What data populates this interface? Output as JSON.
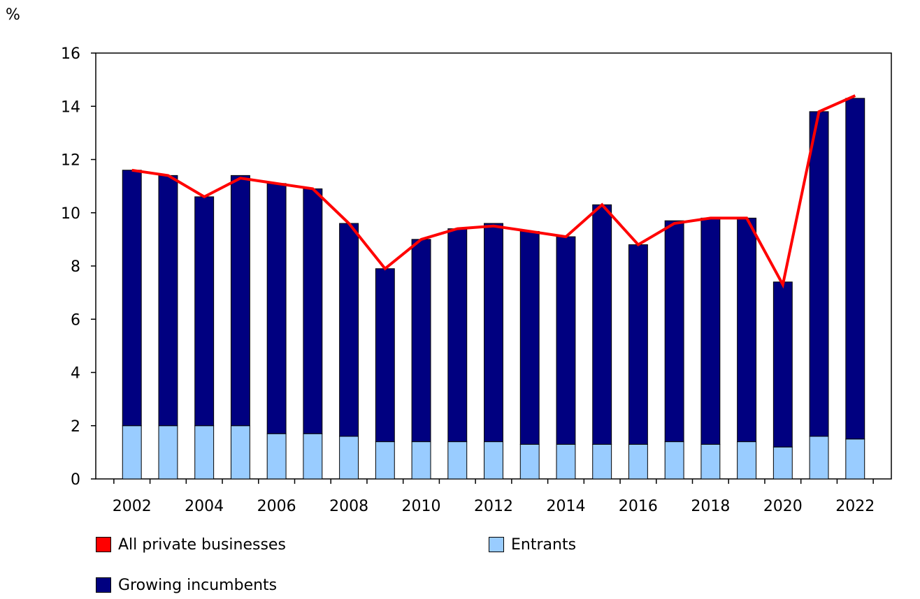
{
  "chart_data": {
    "type": "bar",
    "stacked": true,
    "unit_label": "%",
    "title": "",
    "xlabel": "",
    "ylabel": "%",
    "ylim": [
      0,
      16
    ],
    "y_ticks": [
      "0",
      "2",
      "4",
      "6",
      "8",
      "10",
      "12",
      "14",
      "16"
    ],
    "categories": [
      "2002",
      "2003",
      "2004",
      "2005",
      "2006",
      "2007",
      "2008",
      "2009",
      "2010",
      "2011",
      "2012",
      "2013",
      "2014",
      "2015",
      "2016",
      "2017",
      "2018",
      "2019",
      "2020",
      "2021",
      "2022"
    ],
    "x_tick_labels": [
      "2002",
      "",
      "2004",
      "",
      "2006",
      "",
      "2008",
      "",
      "2010",
      "",
      "2012",
      "",
      "2014",
      "",
      "2016",
      "",
      "2018",
      "",
      "2020",
      "",
      "2022"
    ],
    "series": [
      {
        "name": "Entrants",
        "kind": "bar",
        "color": "#99ccff",
        "values": [
          2.0,
          2.0,
          2.0,
          2.0,
          1.7,
          1.7,
          1.6,
          1.4,
          1.4,
          1.4,
          1.4,
          1.3,
          1.3,
          1.3,
          1.3,
          1.4,
          1.3,
          1.4,
          1.2,
          1.6,
          1.5
        ]
      },
      {
        "name": "Growing incumbents",
        "kind": "bar",
        "color": "#000080",
        "values": [
          9.6,
          9.4,
          8.6,
          9.4,
          9.4,
          9.2,
          8.0,
          6.5,
          7.6,
          8.0,
          8.2,
          8.0,
          7.8,
          9.0,
          7.5,
          8.3,
          8.5,
          8.4,
          6.2,
          12.2,
          12.8
        ]
      },
      {
        "name": "All private businesses",
        "kind": "line",
        "color": "#ff0000",
        "values": [
          11.6,
          11.4,
          10.6,
          11.3,
          11.1,
          10.9,
          9.6,
          7.9,
          9.0,
          9.4,
          9.5,
          9.3,
          9.1,
          10.3,
          8.8,
          9.6,
          9.8,
          9.8,
          7.3,
          13.8,
          14.4
        ]
      }
    ],
    "legend": [
      {
        "label": "All private businesses",
        "color": "#ff0000"
      },
      {
        "label": "Entrants",
        "color": "#99ccff"
      },
      {
        "label": "Growing incumbents",
        "color": "#000080"
      }
    ]
  }
}
